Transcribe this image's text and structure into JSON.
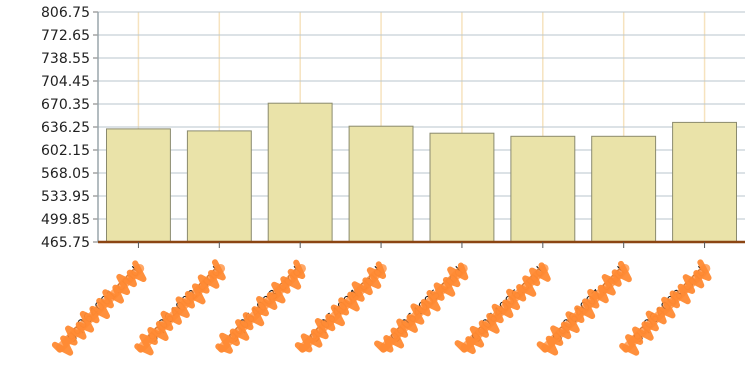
{
  "chart_data": {
    "type": "bar",
    "title": "",
    "xlabel": "",
    "ylabel": "",
    "ylim": [
      465.75,
      806.75
    ],
    "yticks": [
      "465.75",
      "499.85",
      "533.95",
      "568.05",
      "602.15",
      "636.25",
      "670.35",
      "704.45",
      "738.55",
      "772.65",
      "806.75"
    ],
    "categories": [
      "gq064001.cmd",
      "gq064002.cmd",
      "gq064003.cmd",
      "gq064004.cmd",
      "gq064005.cmd",
      "gq064006.cmd",
      "gq064007.cmd",
      "gq064008.cmd"
    ],
    "values": [
      633.5,
      630.5,
      671.5,
      637.5,
      627.0,
      622.5,
      622.5,
      643.0
    ],
    "grid": true,
    "legend": "none",
    "colors": {
      "bar_fill": "#EAE3A9",
      "bar_stroke": "#8A8A6E",
      "grid_horizontal": "#B9C6CC",
      "grid_vertical": "#F6E3BF",
      "x_axis": "#8B4513",
      "y_axis": "#9AA6AB",
      "label_scribble": "#FF8A33"
    }
  }
}
